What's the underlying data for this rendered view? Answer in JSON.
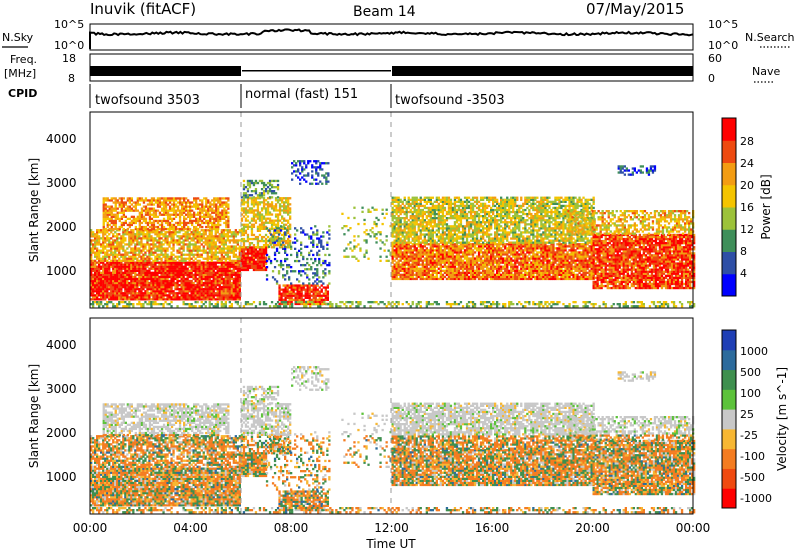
{
  "header": {
    "station": "Inuvik (fitACF)",
    "beam": "Beam 14",
    "date": "07/May/2015"
  },
  "left_labels": {
    "nsky": "N.Sky",
    "freq": "Freq.",
    "freq_unit": "[MHz]",
    "cpid": "CPID"
  },
  "right_labels": {
    "nsearch": "N.Search",
    "nave": "Nave"
  },
  "noise_panel": {
    "tick_top": "10^5",
    "tick_bottom": "10^0",
    "right_tick_top": "10^5",
    "right_tick_bottom": "10^0"
  },
  "freq_panel": {
    "left_ticks": [
      "18",
      "8"
    ],
    "right_ticks": [
      "60",
      "0"
    ]
  },
  "cpid_segments": [
    {
      "label": "twofsound 3503",
      "start_h": 0,
      "end_h": 6
    },
    {
      "label": "normal (fast) 151",
      "start_h": 6,
      "end_h": 12
    },
    {
      "label": "twofsound -3503",
      "start_h": 12,
      "end_h": 24
    }
  ],
  "chart_data": [
    {
      "type": "heatmap",
      "quantity": "Power",
      "ylabel": "Slant Range [km]",
      "xlim": [
        0,
        24
      ],
      "ylim": [
        180,
        4500
      ],
      "yticks": [
        "1000",
        "2000",
        "3000",
        "4000"
      ],
      "colorbar_label": "Power [dB]",
      "colorbar_ticks": [
        "4",
        "8",
        "12",
        "16",
        "20",
        "24",
        "28"
      ],
      "colorbar_colors": [
        "#0000ff",
        "#2e4fa6",
        "#3f8f5a",
        "#9cc23a",
        "#f4c400",
        "#f39c12",
        "#ee4a10",
        "#ff0000"
      ]
    },
    {
      "type": "heatmap",
      "quantity": "Velocity",
      "ylabel": "Slant Range [km]",
      "xlabel": "Time UT",
      "xlim": [
        0,
        24
      ],
      "ylim": [
        180,
        4500
      ],
      "xticks": [
        "00:00",
        "04:00",
        "08:00",
        "12:00",
        "16:00",
        "20:00",
        "00:00"
      ],
      "yticks": [
        "1000",
        "2000",
        "3000",
        "4000"
      ],
      "colorbar_label": "Velocity [m s^-1]",
      "colorbar_ticks": [
        "1000",
        "500",
        "100",
        "25",
        "-25",
        "-100",
        "-500",
        "-1000"
      ],
      "colorbar_colors": [
        "#1f3fb5",
        "#2c6b9c",
        "#3e8f4e",
        "#5cc23a",
        "#c8c8c8",
        "#f7b733",
        "#f47c20",
        "#f04a10",
        "#ff0000"
      ]
    }
  ]
}
